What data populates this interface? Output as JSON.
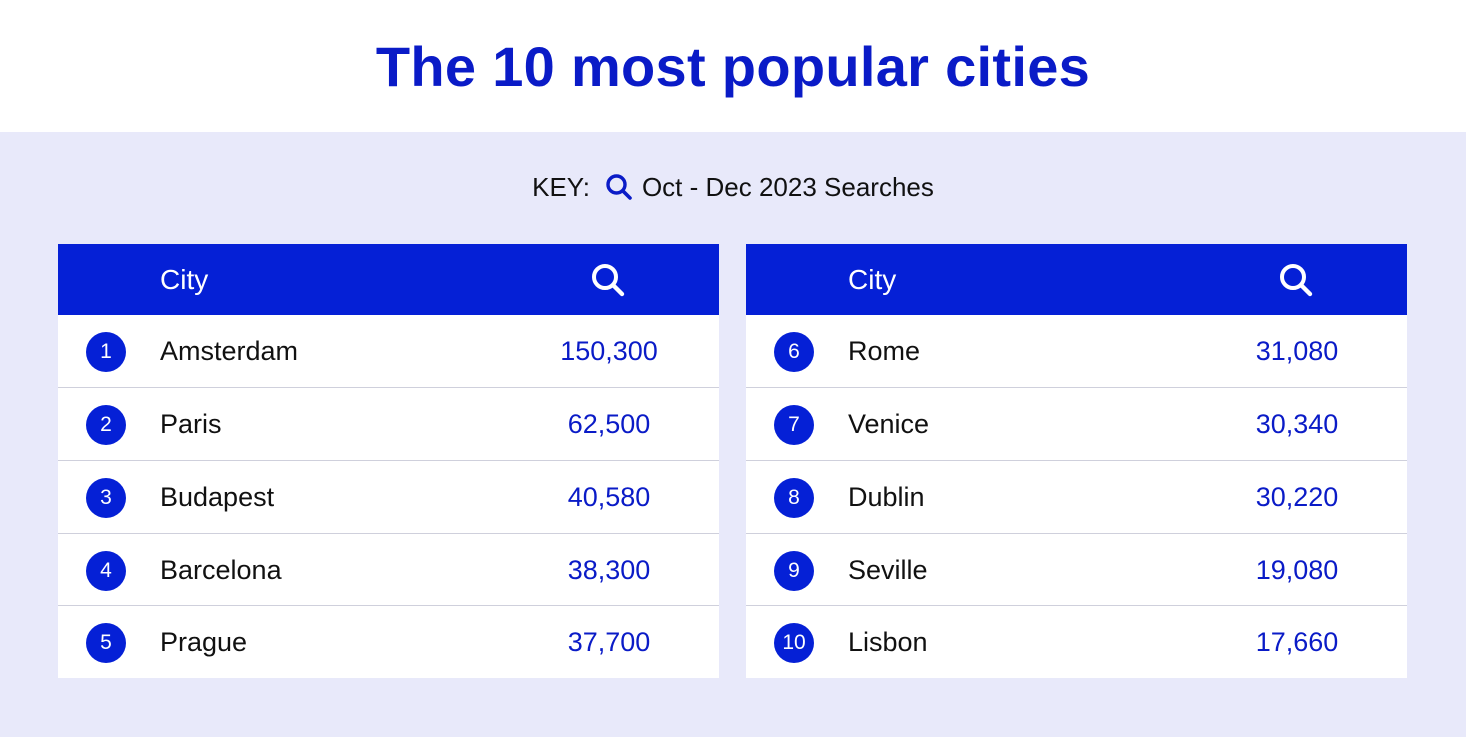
{
  "title": "The 10 most popular cities",
  "key": {
    "label": "KEY:",
    "icon": "search-icon",
    "text": "Oct - Dec 2023 Searches"
  },
  "colors": {
    "accent": "#0520d6",
    "title": "#0a1bc7",
    "background": "#e8e9fa"
  },
  "tables": [
    {
      "header_city": "City",
      "header_icon": "search-icon",
      "rows": [
        {
          "rank": "1",
          "city": "Amsterdam",
          "searches": "150,300"
        },
        {
          "rank": "2",
          "city": "Paris",
          "searches": "62,500"
        },
        {
          "rank": "3",
          "city": "Budapest",
          "searches": "40,580"
        },
        {
          "rank": "4",
          "city": "Barcelona",
          "searches": "38,300"
        },
        {
          "rank": "5",
          "city": "Prague",
          "searches": "37,700"
        }
      ]
    },
    {
      "header_city": "City",
      "header_icon": "search-icon",
      "rows": [
        {
          "rank": "6",
          "city": "Rome",
          "searches": "31,080"
        },
        {
          "rank": "7",
          "city": "Venice",
          "searches": "30,340"
        },
        {
          "rank": "8",
          "city": "Dublin",
          "searches": "30,220"
        },
        {
          "rank": "9",
          "city": "Seville",
          "searches": "19,080"
        },
        {
          "rank": "10",
          "city": "Lisbon",
          "searches": "17,660"
        }
      ]
    }
  ],
  "chart_data": {
    "type": "table",
    "title": "The 10 most popular cities",
    "columns": [
      "",
      "City",
      "Oct - Dec 2023 Searches"
    ],
    "rows": [
      [
        1,
        "Amsterdam",
        150300
      ],
      [
        2,
        "Paris",
        62500
      ],
      [
        3,
        "Budapest",
        40580
      ],
      [
        4,
        "Barcelona",
        38300
      ],
      [
        5,
        "Prague",
        37700
      ],
      [
        6,
        "Rome",
        31080
      ],
      [
        7,
        "Venice",
        30340
      ],
      [
        8,
        "Dublin",
        30220
      ],
      [
        9,
        "Seville",
        19080
      ],
      [
        10,
        "Lisbon",
        17660
      ]
    ]
  }
}
